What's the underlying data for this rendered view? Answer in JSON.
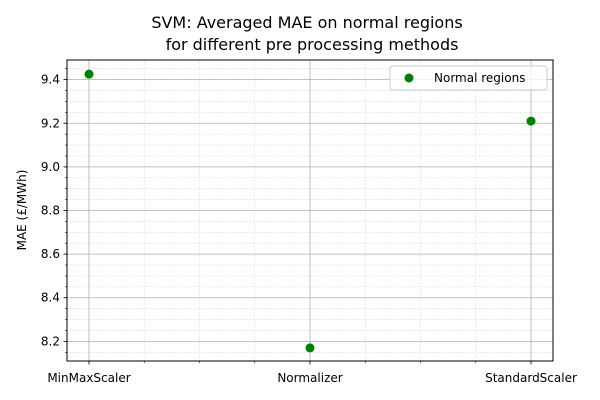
{
  "chart_data": {
    "type": "scatter",
    "title_lines": [
      "SVM: Averaged MAE on normal regions",
      "for different pre processing methods"
    ],
    "xlabel": "",
    "ylabel": "MAE (£/MWh)",
    "categories": [
      "MinMaxScaler",
      "Normalizer",
      "StandardScaler"
    ],
    "series": [
      {
        "name": "Normal regions",
        "color": "#008000",
        "values": [
          9.425,
          8.17,
          9.21
        ]
      }
    ],
    "ylim": [
      8.11,
      9.49
    ],
    "yticks": [
      8.2,
      8.4,
      8.6,
      8.8,
      9.0,
      9.2,
      9.4
    ],
    "ytick_labels": [
      "8.2",
      "8.4",
      "8.6",
      "8.8",
      "9.0",
      "9.2",
      "9.4"
    ],
    "y_minor_step": 0.05,
    "x_minor_per_major": 4,
    "grid": true,
    "minor_grid": true,
    "legend_position": "upper-right"
  }
}
